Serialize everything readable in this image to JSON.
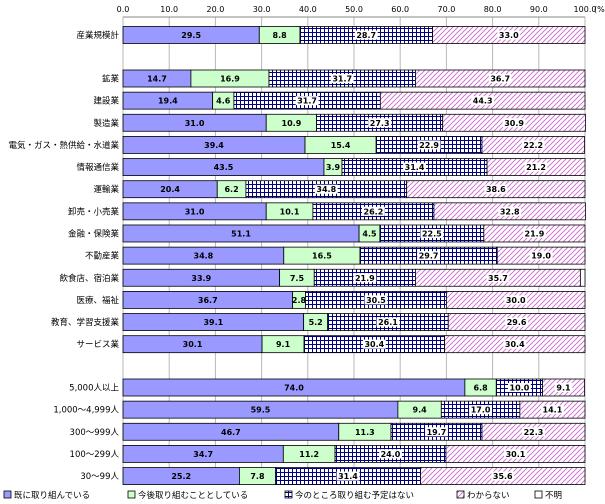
{
  "chart_data": {
    "type": "bar",
    "orientation": "horizontal",
    "stacked": true,
    "unit_label": "(%)",
    "xlim": [
      0,
      100
    ],
    "xticks": [
      "0.0",
      "10.0",
      "20.0",
      "30.0",
      "40.0",
      "50.0",
      "60.0",
      "70.0",
      "80.0",
      "90.0",
      "100.0"
    ],
    "series": [
      {
        "name": "既に取り組んでいる",
        "fill": "#9999ff",
        "pattern": "solid"
      },
      {
        "name": "今後取り組むこととしている",
        "fill": "#ccffcc",
        "pattern": "solid"
      },
      {
        "name": "今のところ取り組む予定はない",
        "fill": "#ffffff",
        "pattern": "grid",
        "stroke": "#000080"
      },
      {
        "name": "わからない",
        "fill": "#ffffff",
        "pattern": "diagonal",
        "stroke": "#cc66cc"
      },
      {
        "name": "不明",
        "fill": "#ffffff",
        "pattern": "solid"
      }
    ],
    "groups": [
      {
        "rows": [
          {
            "category": "産業規模計",
            "values": [
              29.5,
              8.8,
              28.7,
              33.0,
              0.0
            ],
            "labels": [
              "29.5",
              "8.8",
              "28.7",
              "33.0",
              ""
            ]
          }
        ]
      },
      {
        "rows": [
          {
            "category": "鉱業",
            "values": [
              14.7,
              16.9,
              31.7,
              36.7,
              0.0
            ],
            "labels": [
              "14.7",
              "16.9",
              "31.7",
              "36.7",
              ""
            ]
          },
          {
            "category": "建設業",
            "values": [
              19.4,
              4.6,
              31.7,
              44.3,
              0.0
            ],
            "labels": [
              "19.4",
              "4.6",
              "31.7",
              "44.3",
              ""
            ]
          },
          {
            "category": "製造業",
            "values": [
              31.0,
              10.9,
              27.3,
              30.9,
              0.0
            ],
            "labels": [
              "31.0",
              "10.9",
              "27.3",
              "30.9",
              ""
            ]
          },
          {
            "category": "電気・ガス・熱供給・水道業",
            "values": [
              39.4,
              15.4,
              22.9,
              22.2,
              0.0
            ],
            "labels": [
              "39.4",
              "15.4",
              "22.9",
              "22.2",
              ""
            ]
          },
          {
            "category": "情報通信業",
            "values": [
              43.5,
              3.9,
              31.4,
              21.2,
              0.0
            ],
            "labels": [
              "43.5",
              "3.9",
              "31.4",
              "21.2",
              ""
            ]
          },
          {
            "category": "運輸業",
            "values": [
              20.4,
              6.2,
              34.8,
              38.6,
              0.0
            ],
            "labels": [
              "20.4",
              "6.2",
              "34.8",
              "38.6",
              ""
            ]
          },
          {
            "category": "卸売・小売業",
            "values": [
              31.0,
              10.1,
              26.2,
              32.8,
              0.0
            ],
            "labels": [
              "31.0",
              "10.1",
              "26.2",
              "32.8",
              ""
            ]
          },
          {
            "category": "金融・保険業",
            "values": [
              51.1,
              4.5,
              22.5,
              21.9,
              0.0
            ],
            "labels": [
              "51.1",
              "4.5",
              "22.5",
              "21.9",
              ""
            ]
          },
          {
            "category": "不動産業",
            "values": [
              34.8,
              16.5,
              29.7,
              19.0,
              0.0
            ],
            "labels": [
              "34.8",
              "16.5",
              "29.7",
              "19.0",
              ""
            ]
          },
          {
            "category": "飲食店、宿泊業",
            "values": [
              33.9,
              7.5,
              21.9,
              35.7,
              1.0
            ],
            "labels": [
              "33.9",
              "7.5",
              "21.9",
              "35.7",
              ""
            ]
          },
          {
            "category": "医療、福祉",
            "values": [
              36.7,
              2.8,
              30.5,
              30.0,
              0.0
            ],
            "labels": [
              "36.7",
              "2.8",
              "30.5",
              "30.0",
              ""
            ]
          },
          {
            "category": "教育、学習支援業",
            "values": [
              39.1,
              5.2,
              26.1,
              29.6,
              0.0
            ],
            "labels": [
              "39.1",
              "5.2",
              "26.1",
              "29.6",
              ""
            ]
          },
          {
            "category": "サービス業",
            "values": [
              30.1,
              9.1,
              30.4,
              30.4,
              0.0
            ],
            "labels": [
              "30.1",
              "9.1",
              "30.4",
              "30.4",
              ""
            ]
          }
        ]
      },
      {
        "rows": [
          {
            "category": "5,000人以上",
            "values": [
              74.0,
              6.8,
              10.0,
              9.1,
              0.0
            ],
            "labels": [
              "74.0",
              "6.8",
              "10.0",
              "9.1",
              ""
            ]
          },
          {
            "category": "1,000～4,999人",
            "values": [
              59.5,
              9.4,
              17.0,
              14.1,
              0.0
            ],
            "labels": [
              "59.5",
              "9.4",
              "17.0",
              "14.1",
              ""
            ]
          },
          {
            "category": "300～999人",
            "values": [
              46.7,
              11.3,
              19.7,
              22.3,
              0.0
            ],
            "labels": [
              "46.7",
              "11.3",
              "19.7",
              "22.3",
              ""
            ]
          },
          {
            "category": "100～299人",
            "values": [
              34.7,
              11.2,
              24.0,
              30.1,
              0.0
            ],
            "labels": [
              "34.7",
              "11.2",
              "24.0",
              "30.1",
              ""
            ]
          },
          {
            "category": "30～99人",
            "values": [
              25.2,
              7.8,
              31.4,
              35.6,
              0.0
            ],
            "labels": [
              "25.2",
              "7.8",
              "31.4",
              "35.6",
              ""
            ]
          }
        ]
      }
    ],
    "title": "",
    "xlabel": "",
    "ylabel": "",
    "legend_position": "bottom"
  }
}
